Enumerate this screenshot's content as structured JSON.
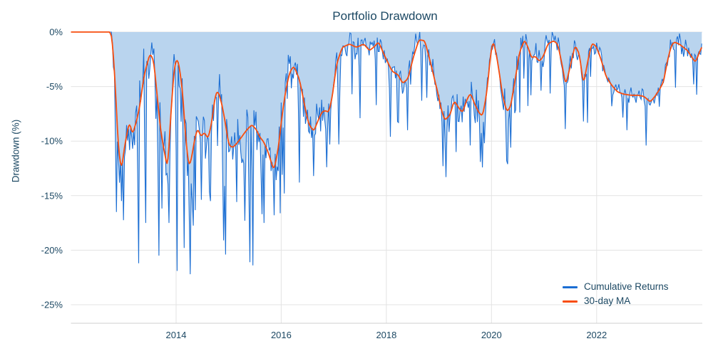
{
  "chart_data": {
    "type": "line",
    "title": "Portfolio Drawdown",
    "xlabel": "",
    "ylabel": "Drawdown (%)",
    "x_range": [
      2012.0,
      2024.01
    ],
    "y_range": [
      -26.7,
      0
    ],
    "grid": true,
    "legend_position": "bottom-right",
    "x_ticks": {
      "values": [
        2014,
        2016,
        2018,
        2020,
        2022
      ],
      "labels": [
        "2014",
        "2016",
        "2018",
        "2020",
        "2022"
      ]
    },
    "y_ticks": {
      "values": [
        0,
        -5,
        -10,
        -15,
        -20,
        -25
      ],
      "labels": [
        "0%",
        "-5%",
        "-10%",
        "-15%",
        "-20%",
        "-25%"
      ]
    },
    "colors": {
      "grid": "#e3e3e3",
      "axis_line": "#cfcfcf",
      "text": "#1c4863",
      "background": "#ffffff"
    },
    "series": [
      {
        "name": "Cumulative Returns",
        "color": "#1b6ed3",
        "fill": "#b9d4ee",
        "style": "noisy-daily-line-with-area"
      },
      {
        "name": "30-day MA",
        "color": "#f84d0e",
        "style": "smooth-line"
      }
    ],
    "flat_zero_until": 2012.785,
    "ma_points": [
      [
        2012.01,
        0
      ],
      [
        2012.75,
        0
      ],
      [
        2012.79,
        -0.8
      ],
      [
        2012.85,
        -5.5
      ],
      [
        2012.9,
        -10.5
      ],
      [
        2012.96,
        -12.7
      ],
      [
        2013.02,
        -10.5
      ],
      [
        2013.11,
        -8.2
      ],
      [
        2013.17,
        -9.4
      ],
      [
        2013.24,
        -8.3
      ],
      [
        2013.31,
        -6.8
      ],
      [
        2013.39,
        -4
      ],
      [
        2013.5,
        -2
      ],
      [
        2013.57,
        -2.5
      ],
      [
        2013.63,
        -5.3
      ],
      [
        2013.7,
        -8.8
      ],
      [
        2013.77,
        -10.8
      ],
      [
        2013.84,
        -12.6
      ],
      [
        2013.9,
        -7.5
      ],
      [
        2013.97,
        -3
      ],
      [
        2014.03,
        -2.4
      ],
      [
        2014.08,
        -3.8
      ],
      [
        2014.12,
        -5.3
      ],
      [
        2014.18,
        -9.5
      ],
      [
        2014.24,
        -12.4
      ],
      [
        2014.3,
        -11.5
      ],
      [
        2014.34,
        -10.1
      ],
      [
        2014.41,
        -8.8
      ],
      [
        2014.47,
        -9.6
      ],
      [
        2014.54,
        -9.2
      ],
      [
        2014.61,
        -9.8
      ],
      [
        2014.68,
        -8.2
      ],
      [
        2014.75,
        -5.7
      ],
      [
        2014.8,
        -5.4
      ],
      [
        2014.87,
        -6.6
      ],
      [
        2014.94,
        -8.4
      ],
      [
        2015.0,
        -10.3
      ],
      [
        2015.07,
        -10.6
      ],
      [
        2015.14,
        -10.3
      ],
      [
        2015.22,
        -9.8
      ],
      [
        2015.34,
        -9
      ],
      [
        2015.44,
        -8.5
      ],
      [
        2015.52,
        -8.9
      ],
      [
        2015.59,
        -9.6
      ],
      [
        2015.67,
        -10.1
      ],
      [
        2015.75,
        -11
      ],
      [
        2015.86,
        -12.7
      ],
      [
        2015.94,
        -10.8
      ],
      [
        2016.01,
        -7.9
      ],
      [
        2016.08,
        -5.5
      ],
      [
        2016.16,
        -3.7
      ],
      [
        2016.24,
        -3.1
      ],
      [
        2016.35,
        -4.4
      ],
      [
        2016.44,
        -6.6
      ],
      [
        2016.52,
        -8.4
      ],
      [
        2016.62,
        -9.1
      ],
      [
        2016.71,
        -8
      ],
      [
        2016.78,
        -7.3
      ],
      [
        2016.85,
        -7.2
      ],
      [
        2016.9,
        -7.4
      ],
      [
        2016.97,
        -6
      ],
      [
        2017.05,
        -3
      ],
      [
        2017.16,
        -1.4
      ],
      [
        2017.3,
        -1.1
      ],
      [
        2017.43,
        -1.4
      ],
      [
        2017.57,
        -1.1
      ],
      [
        2017.68,
        -1.7
      ],
      [
        2017.78,
        -1.3
      ],
      [
        2017.85,
        -0.9
      ],
      [
        2017.97,
        -2.2
      ],
      [
        2018.11,
        -3.6
      ],
      [
        2018.22,
        -3.9
      ],
      [
        2018.31,
        -4.7
      ],
      [
        2018.41,
        -4.3
      ],
      [
        2018.52,
        -2.2
      ],
      [
        2018.62,
        -0.7
      ],
      [
        2018.73,
        -0.8
      ],
      [
        2018.83,
        -2.6
      ],
      [
        2018.91,
        -4.2
      ],
      [
        2018.98,
        -5.6
      ],
      [
        2019.04,
        -7
      ],
      [
        2019.11,
        -8.1
      ],
      [
        2019.21,
        -7.6
      ],
      [
        2019.29,
        -6.3
      ],
      [
        2019.37,
        -6.9
      ],
      [
        2019.45,
        -7.4
      ],
      [
        2019.53,
        -6.2
      ],
      [
        2019.6,
        -5.6
      ],
      [
        2019.68,
        -6.6
      ],
      [
        2019.76,
        -7.4
      ],
      [
        2019.83,
        -7.7
      ],
      [
        2019.91,
        -5.6
      ],
      [
        2019.98,
        -2.2
      ],
      [
        2020.03,
        -0.7
      ],
      [
        2020.11,
        -2.5
      ],
      [
        2020.21,
        -5.8
      ],
      [
        2020.29,
        -7.3
      ],
      [
        2020.36,
        -6.9
      ],
      [
        2020.45,
        -4.4
      ],
      [
        2020.53,
        -1.9
      ],
      [
        2020.63,
        -0.7
      ],
      [
        2020.71,
        -1.6
      ],
      [
        2020.76,
        -2.4
      ],
      [
        2020.83,
        -2.2
      ],
      [
        2020.91,
        -2.7
      ],
      [
        2020.99,
        -2.2
      ],
      [
        2021.07,
        -1.1
      ],
      [
        2021.18,
        -0.8
      ],
      [
        2021.26,
        -1.1
      ],
      [
        2021.34,
        -2.9
      ],
      [
        2021.41,
        -4.9
      ],
      [
        2021.49,
        -3.3
      ],
      [
        2021.59,
        -1.2
      ],
      [
        2021.67,
        -2
      ],
      [
        2021.75,
        -4.8
      ],
      [
        2021.83,
        -2.7
      ],
      [
        2021.91,
        -1
      ],
      [
        2021.99,
        -1.3
      ],
      [
        2022.07,
        -2.3
      ],
      [
        2022.18,
        -4.1
      ],
      [
        2022.29,
        -4.9
      ],
      [
        2022.4,
        -5.5
      ],
      [
        2022.52,
        -5.7
      ],
      [
        2022.66,
        -5.8
      ],
      [
        2022.79,
        -5.8
      ],
      [
        2022.9,
        -5.9
      ],
      [
        2022.97,
        -6.2
      ],
      [
        2023.02,
        -6.4
      ],
      [
        2023.11,
        -5.9
      ],
      [
        2023.19,
        -5.3
      ],
      [
        2023.27,
        -4.6
      ],
      [
        2023.34,
        -2.8
      ],
      [
        2023.41,
        -1.4
      ],
      [
        2023.47,
        -0.9
      ],
      [
        2023.57,
        -1.1
      ],
      [
        2023.65,
        -1.4
      ],
      [
        2023.73,
        -1.7
      ],
      [
        2023.81,
        -2.3
      ],
      [
        2023.88,
        -2.8
      ],
      [
        2023.95,
        -1.9
      ],
      [
        2024.0,
        -1.4
      ]
    ],
    "extreme_spikes": [
      [
        2012.86,
        -16.5
      ],
      [
        2012.96,
        -15.5
      ],
      [
        2013.29,
        -21.2
      ],
      [
        2013.43,
        -17.5
      ],
      [
        2013.67,
        -20.5
      ],
      [
        2013.86,
        -17.5
      ],
      [
        2014.01,
        -21.9
      ],
      [
        2014.15,
        -19.8
      ],
      [
        2014.26,
        -22.2
      ],
      [
        2014.65,
        -15.5
      ],
      [
        2014.9,
        -19.1
      ],
      [
        2014.95,
        -20.4
      ],
      [
        2015.3,
        -17.3
      ],
      [
        2015.4,
        -21.1
      ],
      [
        2015.46,
        -21.4
      ],
      [
        2015.63,
        -16.7
      ],
      [
        2015.67,
        -17.5
      ],
      [
        2015.87,
        -16.8
      ],
      [
        2016.05,
        -14.8
      ],
      [
        2016.35,
        -13.8
      ],
      [
        2016.62,
        -13.2
      ],
      [
        2016.86,
        -12.4
      ],
      [
        2017.09,
        -10.3
      ],
      [
        2017.5,
        -7.9
      ],
      [
        2017.81,
        -6.7
      ],
      [
        2018.08,
        -9.6
      ],
      [
        2018.24,
        -8.3
      ],
      [
        2018.41,
        -9
      ],
      [
        2018.68,
        -6.3
      ],
      [
        2019.07,
        -12.3
      ],
      [
        2019.14,
        -13.3
      ],
      [
        2019.33,
        -11
      ],
      [
        2019.59,
        -10.4
      ],
      [
        2019.78,
        -11.9
      ],
      [
        2019.87,
        -10.2
      ],
      [
        2020.29,
        -11.8
      ],
      [
        2020.36,
        -10.6
      ],
      [
        2020.75,
        -5.8
      ],
      [
        2021.4,
        -8.9
      ],
      [
        2021.74,
        -8.2
      ],
      [
        2022.28,
        -6.8
      ],
      [
        2022.58,
        -9
      ],
      [
        2022.95,
        -10.4
      ],
      [
        2023.49,
        -5.1
      ],
      [
        2023.84,
        -4.8
      ]
    ],
    "noise": {
      "seed": 11,
      "step_years": 0.01923,
      "eras": [
        {
          "from": 2012.0,
          "to": 2012.785,
          "amp": 0,
          "spike_p": 0,
          "spike_min": 0,
          "spike_max": 0
        },
        {
          "from": 2012.785,
          "to": 2016.2,
          "amp": 2.9,
          "spike_p": 0.1,
          "spike_min": 2.5,
          "spike_max": 7.5
        },
        {
          "from": 2016.2,
          "to": 2017.05,
          "amp": 2.0,
          "spike_p": 0.08,
          "spike_min": 2,
          "spike_max": 5.5
        },
        {
          "from": 2017.05,
          "to": 2018.55,
          "amp": 1.3,
          "spike_p": 0.06,
          "spike_min": 1.5,
          "spike_max": 5
        },
        {
          "from": 2018.55,
          "to": 2020.55,
          "amp": 1.8,
          "spike_p": 0.08,
          "spike_min": 2,
          "spike_max": 5.5
        },
        {
          "from": 2020.55,
          "to": 2022.0,
          "amp": 1.5,
          "spike_p": 0.07,
          "spike_min": 1.5,
          "spike_max": 4.5
        },
        {
          "from": 2022.0,
          "to": 2023.3,
          "amp": 0.85,
          "spike_p": 0.05,
          "spike_min": 1,
          "spike_max": 3
        },
        {
          "from": 2023.3,
          "to": 2024.05,
          "amp": 1.1,
          "spike_p": 0.06,
          "spike_min": 1,
          "spike_max": 3.2
        }
      ]
    }
  }
}
